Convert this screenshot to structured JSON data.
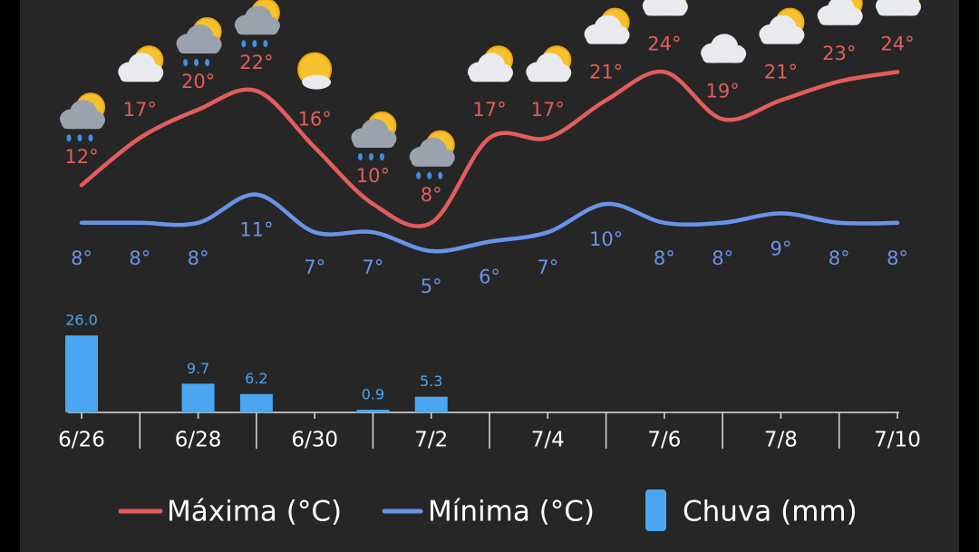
{
  "chart_data": {
    "type": "line",
    "categories": [
      "6/26",
      null,
      "6/28",
      null,
      "6/30",
      null,
      "7/2",
      null,
      "7/4",
      null,
      "7/6",
      null,
      "7/8",
      null,
      "7/10"
    ],
    "series": [
      {
        "name": "Máxima (°C)",
        "color": "#e35d5d",
        "values": [
          12,
          17,
          20,
          22,
          16,
          10,
          8,
          17,
          17,
          21,
          24,
          19,
          21,
          23,
          24
        ],
        "value_labels": [
          "12°",
          "17°",
          "20°",
          "22°",
          "16°",
          "10°",
          "8°",
          "17°",
          "17°",
          "21°",
          "24°",
          "19°",
          "21°",
          "23°",
          "24°"
        ]
      },
      {
        "name": "Mínima (°C)",
        "color": "#6a93e8",
        "values": [
          8,
          8,
          8,
          11,
          7,
          7,
          5,
          6,
          7,
          10,
          8,
          8,
          9,
          8,
          8
        ],
        "value_labels": [
          "8°",
          "8°",
          "8°",
          "11°",
          "7°",
          "7°",
          "5°",
          "6°",
          "7°",
          "10°",
          "8°",
          "8°",
          "9°",
          "8°",
          "8°"
        ]
      },
      {
        "name": "Chuva (mm)",
        "type": "bar",
        "axis": "y2",
        "color": "#4aa6f0",
        "values": [
          26.0,
          null,
          9.7,
          6.2,
          null,
          0.9,
          5.3,
          null,
          null,
          null,
          null,
          null,
          null,
          null,
          null
        ],
        "value_labels": [
          "26.0",
          null,
          "9.7",
          "6.2",
          null,
          "0.9",
          "5.3",
          null,
          null,
          null,
          null,
          null,
          null,
          null,
          null
        ]
      }
    ],
    "ylim": [
      0,
      30
    ],
    "y2lim": [
      0,
      30
    ]
  }
}
